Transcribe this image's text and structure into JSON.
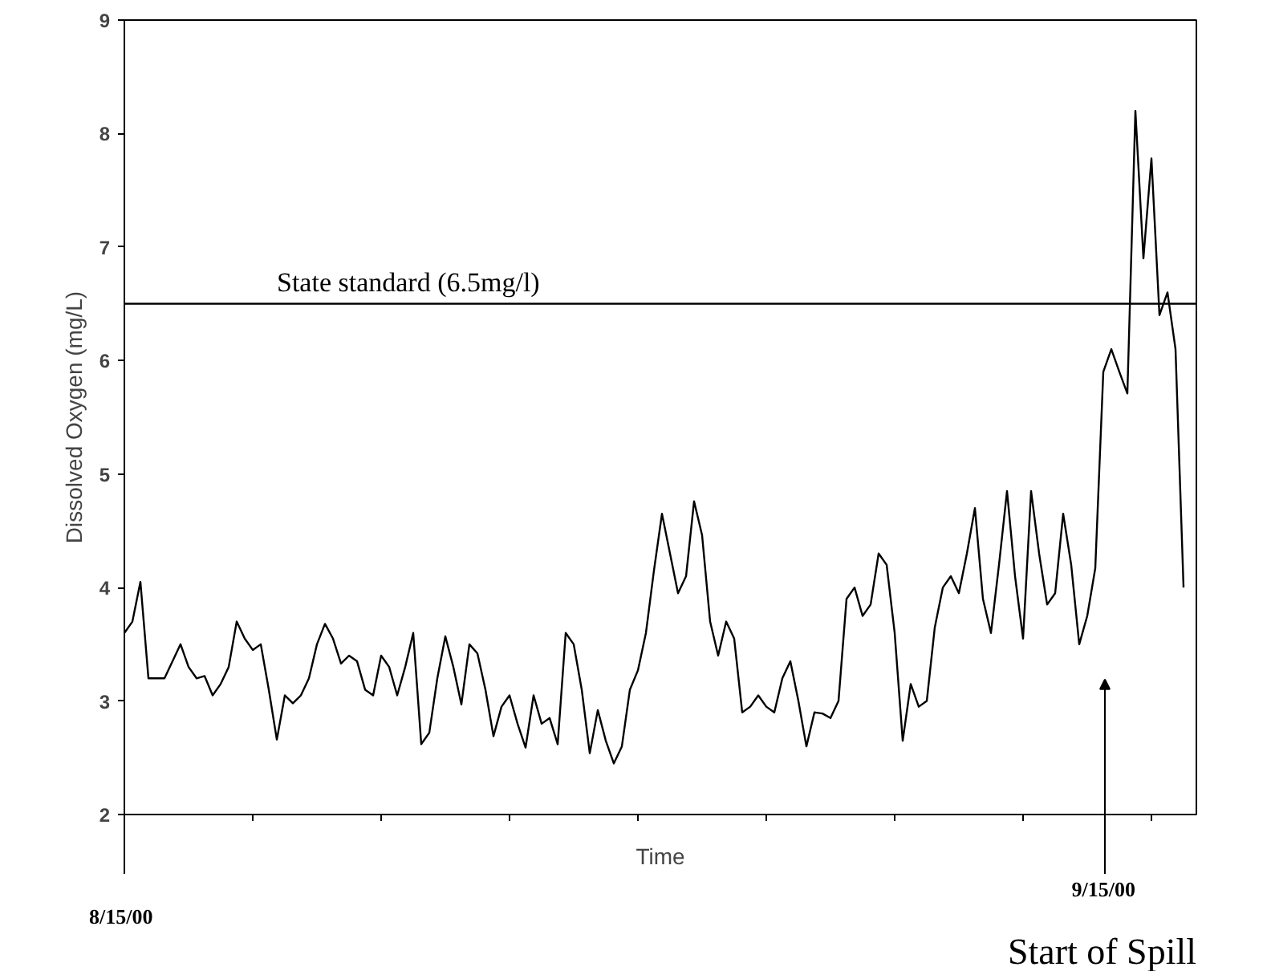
{
  "chart_data": {
    "type": "line",
    "xlabel": "Time",
    "ylabel": "Dissolved Oxygen (mg/L)",
    "categories": [
      null,
      null,
      null,
      null,
      null,
      null,
      null,
      null,
      null,
      null,
      null,
      null,
      null,
      null,
      null,
      null,
      null,
      null,
      null,
      null,
      null,
      null,
      null,
      null,
      null,
      null,
      null,
      null,
      null,
      null,
      null,
      null,
      null,
      null,
      null,
      null,
      null,
      null,
      null,
      null,
      null,
      null,
      null,
      null,
      null,
      null,
      null,
      null,
      null,
      null,
      null,
      null,
      null,
      null,
      null,
      null,
      null,
      null,
      null,
      null,
      null,
      null,
      null,
      null,
      null,
      null,
      null,
      null,
      null,
      null,
      null,
      null,
      null,
      null,
      null,
      null,
      null,
      null,
      null,
      null,
      null,
      null,
      null,
      null,
      null,
      null,
      null,
      null,
      null,
      null,
      null,
      null,
      null,
      null,
      null,
      null,
      null,
      null,
      null,
      null,
      null,
      null,
      null,
      null,
      null,
      null,
      null,
      null,
      null,
      null,
      null,
      null,
      null,
      null,
      null,
      null,
      null,
      null,
      null,
      null,
      null,
      null,
      null,
      null,
      null,
      null,
      null,
      null,
      null,
      null,
      null,
      null,
      null
    ],
    "ylim": [
      2,
      9
    ],
    "yticks": [
      2,
      3,
      4,
      5,
      6,
      7,
      8,
      9
    ],
    "tick_labels": "y",
    "grid": false,
    "marker": "none",
    "line_style": "solid",
    "series": [
      {
        "color": "#000000",
        "values": [
          3.6,
          3.7,
          4.05,
          3.2,
          3.2,
          3.2,
          3.35,
          3.5,
          3.3,
          3.2,
          3.22,
          3.05,
          3.15,
          3.3,
          3.7,
          3.55,
          3.45,
          3.5,
          3.1,
          2.66,
          3.05,
          2.98,
          3.05,
          3.2,
          3.5,
          3.68,
          3.55,
          3.33,
          3.4,
          3.35,
          3.1,
          3.05,
          3.4,
          3.3,
          3.05,
          3.3,
          3.6,
          2.62,
          2.72,
          3.2,
          3.57,
          3.3,
          2.97,
          3.5,
          3.42,
          3.1,
          2.69,
          2.95,
          3.05,
          2.8,
          2.59,
          3.05,
          2.8,
          2.85,
          2.62,
          3.6,
          3.5,
          3.1,
          2.54,
          2.92,
          2.65,
          2.45,
          2.6,
          3.1,
          3.27,
          3.6,
          4.15,
          4.65,
          4.3,
          3.95,
          4.1,
          4.76,
          4.46,
          3.7,
          3.4,
          3.7,
          3.55,
          2.9,
          2.95,
          3.05,
          2.95,
          2.9,
          3.2,
          3.35,
          3.0,
          2.6,
          2.9,
          2.89,
          2.85,
          3.0,
          3.9,
          4.0,
          3.75,
          3.85,
          4.3,
          4.2,
          3.6,
          2.65,
          3.15,
          2.95,
          3.0,
          3.65,
          4.0,
          4.1,
          3.95,
          4.3,
          4.7,
          3.9,
          3.6,
          4.2,
          4.85,
          4.1,
          3.55,
          4.85,
          4.3,
          3.85,
          3.95,
          4.65,
          4.2,
          3.5,
          3.75,
          4.17,
          5.9,
          6.1,
          5.9,
          5.71,
          8.2,
          6.9,
          7.78,
          6.4,
          6.6,
          6.1,
          4.0
        ]
      }
    ],
    "ref_lines": [
      {
        "axis": "y",
        "value": 6.5,
        "label": "State standard (6.5mg/l)",
        "color": "#000000"
      }
    ],
    "annotations": [
      "8/15/00",
      "9/15/00",
      "Start of Spill"
    ]
  }
}
